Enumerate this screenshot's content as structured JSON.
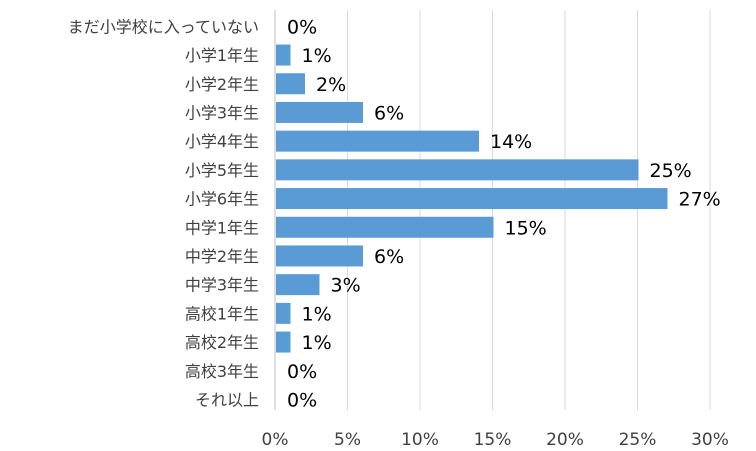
{
  "chart_data": {
    "type": "bar",
    "orientation": "horizontal",
    "title": "",
    "xlabel": "",
    "ylabel": "",
    "categories": [
      "まだ小学校に入っていない",
      "小学1年生",
      "小学2年生",
      "小学3年生",
      "小学4年生",
      "小学5年生",
      "小学6年生",
      "中学1年生",
      "中学2年生",
      "中学3年生",
      "高校1年生",
      "高校2年生",
      "高校3年生",
      "それ以上"
    ],
    "values": [
      0,
      1,
      2,
      6,
      14,
      25,
      27,
      15,
      6,
      3,
      1,
      1,
      0,
      0
    ],
    "data_labels": [
      "0%",
      "1%",
      "2%",
      "6%",
      "14%",
      "25%",
      "27%",
      "15%",
      "6%",
      "3%",
      "1%",
      "1%",
      "0%",
      "0%"
    ],
    "xlim": [
      0,
      30
    ],
    "ticks": [
      0,
      5,
      10,
      15,
      20,
      25,
      30
    ],
    "tick_labels": [
      "0%",
      "5%",
      "10%",
      "15%",
      "20%",
      "25%",
      "30%"
    ],
    "grid": true,
    "legend": "none",
    "bar_color": "#5b9bd5",
    "grid_color": "#d9d9d9"
  }
}
